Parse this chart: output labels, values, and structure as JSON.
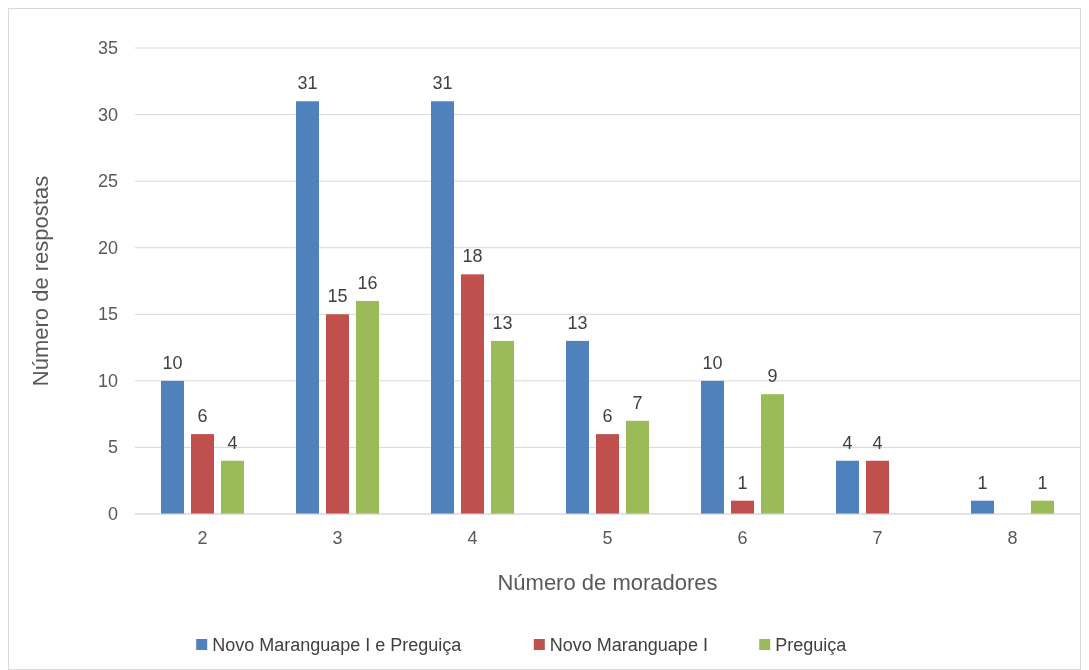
{
  "chart_data": {
    "type": "bar",
    "xlabel": "Número de  moradores",
    "ylabel": "Número de respostas",
    "categories": [
      "2",
      "3",
      "4",
      "5",
      "6",
      "7",
      "8"
    ],
    "series": [
      {
        "name": "Novo Maranguape I e Preguiça",
        "color": "#4f81bd",
        "values": [
          10,
          31,
          31,
          13,
          10,
          4,
          1
        ]
      },
      {
        "name": "Novo Maranguape I",
        "color": "#c0504d",
        "values": [
          6,
          15,
          18,
          6,
          1,
          4,
          null
        ]
      },
      {
        "name": "Preguiça",
        "color": "#9bbb59",
        "values": [
          4,
          16,
          13,
          7,
          9,
          null,
          1
        ]
      }
    ],
    "ylim": [
      0,
      35
    ],
    "yticks": [
      0,
      5,
      10,
      15,
      20,
      25,
      30,
      35
    ],
    "grid": "y",
    "legend": "bottom",
    "data_labels": true
  }
}
